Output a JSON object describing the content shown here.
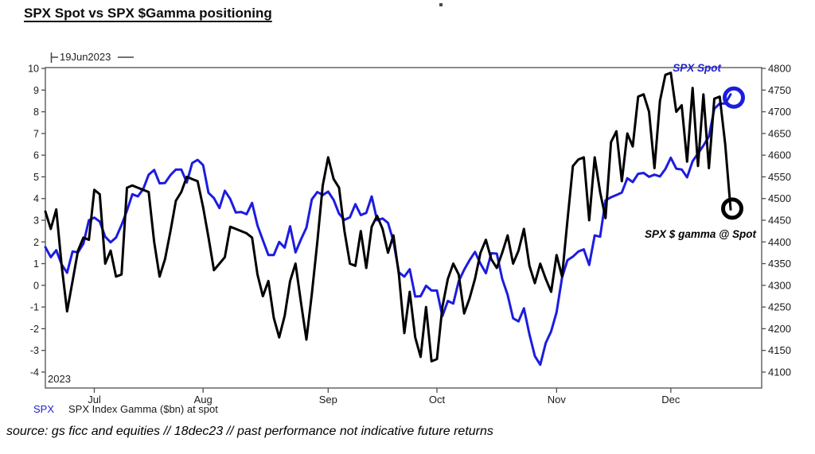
{
  "title": "SPX Spot vs SPX $Gamma positioning ",
  "annotations": {
    "start_date": "19Jun2023",
    "year": "2023",
    "spx_spot_label": "SPX Spot",
    "gamma_at_spot_label": "SPX $ gamma @ Spot"
  },
  "legend": {
    "spx": "SPX",
    "gamma": "SPX Index Gamma ($bn) at spot"
  },
  "source": "source: gs ficc and equities // 18dec23 // past performance not indicative future returns",
  "colors": {
    "spx_blue": "#1c1ce0",
    "blue_text": "#2222cc",
    "gamma_black": "#000000",
    "axis": "#4d4d4d",
    "tick_text": "#1a1a1a"
  },
  "chart_data": {
    "type": "line",
    "title": "SPX Spot vs SPX $Gamma positioning",
    "x_tick_labels": [
      "Jul",
      "Aug",
      "Sep",
      "Oct",
      "Nov",
      "Dec"
    ],
    "x_tick_indices": [
      9,
      29,
      52,
      72,
      94,
      115
    ],
    "x_range_note": "daily data 19Jun2023 to 18Dec2023",
    "left_axis": {
      "label": "SPX Index Gamma ($bn) at spot",
      "min": -4,
      "max": 10,
      "step": 1
    },
    "right_axis": {
      "label": "SPX Spot",
      "min": 4100,
      "max": 4800,
      "step": 50
    },
    "grid": false,
    "series": [
      {
        "name": "SPX",
        "axis": "right",
        "color": "#1c1ce0",
        "values": [
          4388,
          4365,
          4381,
          4348,
          4329,
          4378,
          4376,
          4396,
          4450,
          4456,
          4447,
          4412,
          4399,
          4410,
          4439,
          4472,
          4510,
          4505,
          4522,
          4555,
          4566,
          4535,
          4536,
          4554,
          4567,
          4567,
          4537,
          4582,
          4589,
          4577,
          4513,
          4501,
          4478,
          4518,
          4499,
          4468,
          4469,
          4464,
          4490,
          4438,
          4404,
          4370,
          4370,
          4400,
          4387,
          4436,
          4376,
          4406,
          4433,
          4498,
          4515,
          4508,
          4516,
          4497,
          4465,
          4451,
          4457,
          4487,
          4462,
          4467,
          4505,
          4450,
          4454,
          4444,
          4402,
          4330,
          4320,
          4337,
          4274,
          4275,
          4299,
          4288,
          4288,
          4229,
          4264,
          4258,
          4309,
          4336,
          4358,
          4377,
          4350,
          4328,
          4374,
          4373,
          4315,
          4278,
          4224,
          4217,
          4247,
          4187,
          4137,
          4117,
          4167,
          4194,
          4238,
          4318,
          4358,
          4366,
          4378,
          4383,
          4347,
          4415,
          4412,
          4496,
          4503,
          4508,
          4514,
          4547,
          4538,
          4557,
          4559,
          4550,
          4555,
          4551,
          4568,
          4594,
          4569,
          4567,
          4549,
          4586,
          4604,
          4622,
          4643,
          4707,
          4719,
          4719,
          4740
        ]
      },
      {
        "name": "SPX Index Gamma ($bn) at spot",
        "axis": "left",
        "color": "#000000",
        "values": [
          3.4,
          2.6,
          3.5,
          0.9,
          -1.2,
          0.2,
          1.6,
          2.2,
          2.1,
          4.4,
          4.2,
          1.0,
          1.6,
          0.4,
          0.5,
          4.5,
          4.6,
          4.5,
          4.4,
          4.3,
          2.0,
          0.4,
          1.2,
          2.5,
          3.9,
          4.3,
          5.0,
          4.9,
          4.8,
          3.6,
          2.2,
          0.7,
          1.0,
          1.3,
          2.7,
          2.6,
          2.5,
          2.4,
          2.2,
          0.5,
          -0.5,
          0.2,
          -1.5,
          -2.4,
          -1.4,
          0.2,
          1.0,
          -0.8,
          -2.5,
          -0.4,
          2.0,
          4.6,
          5.9,
          4.9,
          4.5,
          2.5,
          1.0,
          0.9,
          2.5,
          0.8,
          2.7,
          3.2,
          2.6,
          1.5,
          2.3,
          0.5,
          -2.2,
          -0.3,
          -2.4,
          -3.3,
          -1.0,
          -3.5,
          -3.4,
          -1.0,
          0.3,
          1.0,
          0.5,
          -1.3,
          -0.6,
          0.3,
          1.5,
          2.1,
          1.2,
          0.8,
          1.5,
          2.3,
          1.0,
          1.6,
          2.6,
          0.9,
          0.1,
          1.0,
          0.3,
          -0.3,
          1.4,
          0.4,
          3.0,
          5.5,
          5.8,
          5.9,
          3.0,
          5.9,
          4.3,
          3.1,
          6.6,
          7.1,
          4.8,
          7.0,
          6.4,
          8.7,
          8.8,
          8.0,
          5.4,
          8.5,
          9.7,
          9.8,
          8.0,
          8.3,
          5.7,
          9.1,
          5.5,
          8.8,
          5.4,
          8.6,
          8.7,
          6.5,
          3.5
        ]
      }
    ],
    "end_markers": [
      {
        "series": "SPX",
        "shape": "circle",
        "color": "#1c1ce0"
      },
      {
        "series": "SPX Index Gamma ($bn) at spot",
        "shape": "circle",
        "color": "#000000"
      }
    ]
  }
}
